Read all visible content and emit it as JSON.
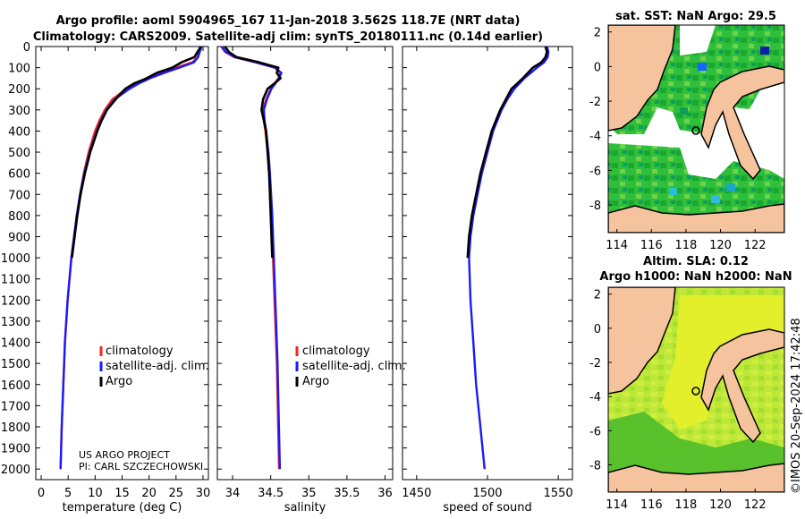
{
  "title_line1": "Argo profile: aoml 5904965_167 11-Jan-2018 3.562S 118.7E (NRT data)",
  "title_line2": "Climatology: CARS2009. Satellite-adj clim: synTS_20180111.nc (0.14d earlier)",
  "credit_line1": "US ARGO PROJECT",
  "credit_line2": "PI: CARL SZCZECHOWSKI",
  "watermark": "©IMOS 20-Sep-2024 17:42:48",
  "colors": {
    "climatology": "#ff2020",
    "satellite": "#1a1aff",
    "argo": "#000000",
    "land": "#f5c39e",
    "contour": "#000000"
  },
  "legend_labels": [
    "climatology",
    "satellite-adj. clim.",
    "Argo"
  ],
  "chart_data": [
    {
      "type": "line",
      "name": "temperature",
      "xlabel": "temperature (deg C)",
      "ylabel": "",
      "xlim": [
        -1,
        31
      ],
      "ylim": [
        0,
        2050
      ],
      "y_inverted": true,
      "xticks": [
        0,
        5,
        10,
        15,
        20,
        25,
        30
      ],
      "yticks": [
        0,
        100,
        200,
        300,
        400,
        500,
        600,
        700,
        800,
        900,
        1000,
        1100,
        1200,
        1300,
        1400,
        1500,
        1600,
        1700,
        1800,
        1900,
        2000
      ],
      "legend": true,
      "series": [
        {
          "name": "climatology",
          "depth": [
            0,
            10,
            25,
            50,
            75,
            100,
            125,
            150,
            175,
            200,
            250,
            300,
            350,
            400,
            500,
            600,
            700,
            800,
            900,
            1000,
            1200,
            1400,
            1600,
            1800,
            2000
          ],
          "values": [
            29.6,
            29.5,
            29.3,
            29.0,
            28.0,
            25.0,
            22.0,
            19.5,
            17.5,
            15.8,
            13.2,
            11.8,
            10.8,
            10.0,
            8.8,
            7.9,
            7.2,
            6.6,
            6.1,
            5.6,
            4.9,
            4.4,
            4.1,
            3.8,
            3.6
          ]
        },
        {
          "name": "satellite-adj. clim.",
          "depth": [
            0,
            10,
            25,
            50,
            75,
            100,
            125,
            150,
            175,
            200,
            250,
            300,
            350,
            400,
            500,
            600,
            700,
            800,
            900,
            1000,
            1200,
            1400,
            1600,
            1800,
            2000
          ],
          "values": [
            29.7,
            29.6,
            29.4,
            29.1,
            28.3,
            25.6,
            22.8,
            20.2,
            18.1,
            16.4,
            13.6,
            12.1,
            11.1,
            10.3,
            9.0,
            8.0,
            7.2,
            6.6,
            6.1,
            5.6,
            4.9,
            4.4,
            4.1,
            3.8,
            3.6
          ]
        },
        {
          "name": "Argo",
          "depth": [
            0,
            10,
            25,
            50,
            75,
            100,
            125,
            150,
            175,
            200,
            250,
            300,
            350,
            400,
            500,
            600,
            700,
            800,
            900,
            1000
          ],
          "values": [
            29.5,
            29.4,
            29.0,
            28.4,
            26.0,
            24.3,
            21.4,
            19.6,
            17.2,
            15.6,
            13.8,
            12.2,
            11.2,
            10.4,
            9.1,
            8.1,
            7.3,
            6.7,
            6.2,
            5.7
          ]
        }
      ]
    },
    {
      "type": "line",
      "name": "salinity",
      "xlabel": "salinity",
      "ylabel": "",
      "xlim": [
        33.8,
        36.1
      ],
      "ylim": [
        0,
        2050
      ],
      "y_inverted": true,
      "xticks": [
        34,
        34.5,
        35,
        35.5,
        36
      ],
      "legend": true,
      "series": [
        {
          "name": "climatology",
          "depth": [
            0,
            25,
            50,
            75,
            100,
            125,
            150,
            175,
            200,
            250,
            300,
            350,
            400,
            500,
            600,
            800,
            1000,
            1200,
            1500,
            2000
          ],
          "values": [
            33.85,
            33.9,
            34.02,
            34.3,
            34.55,
            34.63,
            34.6,
            34.55,
            34.5,
            34.44,
            34.4,
            34.41,
            34.43,
            34.46,
            34.48,
            34.51,
            34.53,
            34.55,
            34.58,
            34.61
          ]
        },
        {
          "name": "satellite-adj. clim.",
          "depth": [
            0,
            25,
            50,
            75,
            100,
            125,
            150,
            175,
            200,
            250,
            300,
            350,
            400,
            500,
            600,
            800,
            1000,
            1200,
            1500,
            2000
          ],
          "values": [
            33.86,
            33.91,
            34.03,
            34.31,
            34.56,
            34.64,
            34.61,
            34.56,
            34.51,
            34.45,
            34.41,
            34.42,
            34.44,
            34.47,
            34.49,
            34.52,
            34.54,
            34.56,
            34.59,
            34.62
          ]
        },
        {
          "name": "Argo",
          "depth": [
            0,
            25,
            50,
            75,
            100,
            125,
            150,
            175,
            200,
            250,
            300,
            350,
            400,
            500,
            600,
            800,
            1000
          ],
          "values": [
            33.9,
            33.95,
            34.05,
            34.35,
            34.6,
            34.58,
            34.63,
            34.55,
            34.46,
            34.4,
            34.38,
            34.41,
            34.44,
            34.46,
            34.48,
            34.5,
            34.52
          ]
        }
      ]
    },
    {
      "type": "line",
      "name": "sound-speed",
      "xlabel": "speed of sound",
      "ylabel": "",
      "xlim": [
        1440,
        1560
      ],
      "ylim": [
        0,
        2050
      ],
      "y_inverted": true,
      "xticks": [
        1450,
        1500,
        1550
      ],
      "legend": false,
      "series": [
        {
          "name": "satellite-adj. clim.",
          "depth": [
            0,
            25,
            50,
            75,
            100,
            150,
            200,
            250,
            300,
            400,
            500,
            600,
            700,
            800,
            900,
            1000,
            1200,
            1400,
            1600,
            1800,
            2000
          ],
          "values": [
            1542,
            1543,
            1542.5,
            1540,
            1535,
            1526,
            1519,
            1514,
            1510,
            1504,
            1500,
            1496,
            1493,
            1490,
            1488,
            1487,
            1488,
            1490,
            1492,
            1495,
            1498
          ]
        },
        {
          "name": "Argo",
          "depth": [
            0,
            25,
            50,
            75,
            100,
            150,
            200,
            250,
            300,
            400,
            500,
            600,
            700,
            800,
            900,
            1000
          ],
          "values": [
            1541,
            1542,
            1541,
            1538,
            1532,
            1525,
            1517,
            1513,
            1509,
            1503,
            1499,
            1495,
            1492,
            1489,
            1487,
            1486
          ]
        }
      ]
    }
  ],
  "maps": [
    {
      "title": "sat. SST: NaN Argo: 29.5",
      "title2": "",
      "xticks": [
        "114",
        "116",
        "118",
        "120",
        "122"
      ],
      "yticks": [
        "2",
        "0",
        "-2",
        "-4",
        "-6",
        "-8"
      ]
    },
    {
      "title": "Altim. SLA: 0.12",
      "title2": "Argo h1000: NaN h2000: NaN",
      "xticks": [
        "114",
        "116",
        "118",
        "120",
        "122"
      ],
      "yticks": [
        "2",
        "0",
        "-2",
        "-4",
        "-6",
        "-8"
      ]
    }
  ]
}
